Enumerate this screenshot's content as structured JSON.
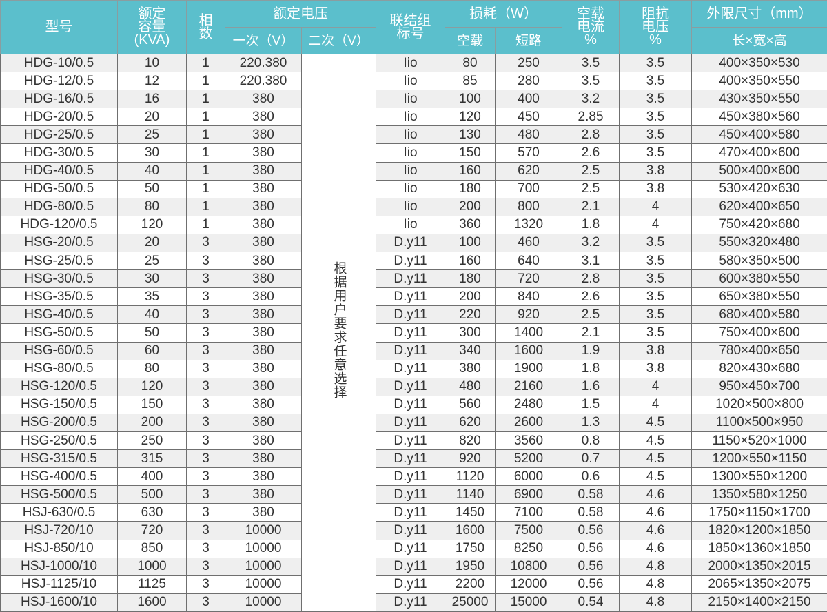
{
  "header": {
    "model": "型号",
    "capacity": [
      "额定",
      "容量",
      "(KVA)"
    ],
    "phases": [
      "相",
      "数"
    ],
    "rated_voltage": "额定电压",
    "primary": "一次（V）",
    "secondary": "二次（V）",
    "connection": [
      "联结组",
      "标号"
    ],
    "loss": "损耗（W）",
    "no_load": "空载",
    "short_circuit": "短路",
    "no_load_current": [
      "空载",
      "电流",
      "%"
    ],
    "impedance_voltage": [
      "阻抗",
      "电压",
      "%"
    ],
    "dimensions": "外限尺寸（mm）",
    "dimensions_sub": "长×宽×高"
  },
  "secondary_note": "根据用户要求任意选择",
  "colors": {
    "header_bg": "#5bbfcc",
    "stripe": "#efefef",
    "text": "#333333"
  },
  "rows": [
    [
      "HDG-10/0.5",
      "10",
      "1",
      "220.380",
      "Iio",
      "80",
      "250",
      "3.5",
      "3.5",
      "400×350×530"
    ],
    [
      "HDG-12/0.5",
      "12",
      "1",
      "220.380",
      "Iio",
      "85",
      "280",
      "3.5",
      "3.5",
      "400×350×550"
    ],
    [
      "HDG-16/0.5",
      "16",
      "1",
      "380",
      "Iio",
      "100",
      "400",
      "3.2",
      "3.5",
      "430×350×550"
    ],
    [
      "HDG-20/0.5",
      "20",
      "1",
      "380",
      "Iio",
      "120",
      "450",
      "2.85",
      "3.5",
      "450×380×560"
    ],
    [
      "HDG-25/0.5",
      "25",
      "1",
      "380",
      "Iio",
      "130",
      "480",
      "2.8",
      "3.5",
      "450×400×580"
    ],
    [
      "HDG-30/0.5",
      "30",
      "1",
      "380",
      "Iio",
      "150",
      "570",
      "2.6",
      "3.5",
      "470×400×600"
    ],
    [
      "HDG-40/0.5",
      "40",
      "1",
      "380",
      "Iio",
      "160",
      "620",
      "2.5",
      "3.8",
      "500×400×600"
    ],
    [
      "HDG-50/0.5",
      "50",
      "1",
      "380",
      "Iio",
      "180",
      "700",
      "2.5",
      "3.8",
      "530×420×630"
    ],
    [
      "HDG-80/0.5",
      "80",
      "1",
      "380",
      "Iio",
      "200",
      "800",
      "2.1",
      "4",
      "620×400×650"
    ],
    [
      "HDG-120/0.5",
      "120",
      "1",
      "380",
      "Iio",
      "360",
      "1320",
      "1.8",
      "4",
      "750×420×680"
    ],
    [
      "HSG-20/0.5",
      "20",
      "3",
      "380",
      "D.y11",
      "100",
      "460",
      "3.2",
      "3.5",
      "550×320×480"
    ],
    [
      "HSG-25/0.5",
      "25",
      "3",
      "380",
      "D.y11",
      "160",
      "640",
      "3.1",
      "3.5",
      "580×350×500"
    ],
    [
      "HSG-30/0.5",
      "30",
      "3",
      "380",
      "D.y11",
      "180",
      "720",
      "2.8",
      "3.5",
      "600×380×550"
    ],
    [
      "HSG-35/0.5",
      "35",
      "3",
      "380",
      "D.y11",
      "200",
      "840",
      "2.6",
      "3.5",
      "650×380×550"
    ],
    [
      "HSG-40/0.5",
      "40",
      "3",
      "380",
      "D.y11",
      "220",
      "920",
      "2.5",
      "3.5",
      "680×400×580"
    ],
    [
      "HSG-50/0.5",
      "50",
      "3",
      "380",
      "D.y11",
      "300",
      "1400",
      "2.1",
      "3.5",
      "750×400×600"
    ],
    [
      "HSG-60/0.5",
      "60",
      "3",
      "380",
      "D.y11",
      "340",
      "1600",
      "1.9",
      "3.8",
      "780×400×650"
    ],
    [
      "HSG-80/0.5",
      "80",
      "3",
      "380",
      "D.y11",
      "380",
      "1900",
      "1.8",
      "3.8",
      "820×430×680"
    ],
    [
      "HSG-120/0.5",
      "120",
      "3",
      "380",
      "D.y11",
      "480",
      "2160",
      "1.6",
      "4",
      "950×450×700"
    ],
    [
      "HSG-150/0.5",
      "150",
      "3",
      "380",
      "D.y11",
      "560",
      "2480",
      "1.5",
      "4",
      "1020×500×800"
    ],
    [
      "HSG-200/0.5",
      "200",
      "3",
      "380",
      "D.y11",
      "620",
      "2600",
      "1.3",
      "4.5",
      "1100×500×950"
    ],
    [
      "HSG-250/0.5",
      "250",
      "3",
      "380",
      "D.y11",
      "820",
      "3560",
      "0.8",
      "4.5",
      "1150×520×1000"
    ],
    [
      "HSG-315/0.5",
      "315",
      "3",
      "380",
      "D.y11",
      "920",
      "5200",
      "0.7",
      "4.5",
      "1200×550×1150"
    ],
    [
      "HSG-400/0.5",
      "400",
      "3",
      "380",
      "D.y11",
      "1120",
      "6000",
      "0.6",
      "4.5",
      "1300×550×1200"
    ],
    [
      "HSG-500/0.5",
      "500",
      "3",
      "380",
      "D.y11",
      "1140",
      "6900",
      "0.58",
      "4.6",
      "1350×580×1250"
    ],
    [
      "HSJ-630/0.5",
      "630",
      "3",
      "380",
      "D.y11",
      "1450",
      "7100",
      "0.58",
      "4.6",
      "1750×1150×1700"
    ],
    [
      "HSJ-720/10",
      "720",
      "3",
      "10000",
      "D.y11",
      "1600",
      "7500",
      "0.56",
      "4.6",
      "1820×1200×1850"
    ],
    [
      "HSJ-850/10",
      "850",
      "3",
      "10000",
      "D.y11",
      "1750",
      "8250",
      "0.56",
      "4.6",
      "1850×1360×1850"
    ],
    [
      "HSJ-1000/10",
      "1000",
      "3",
      "10000",
      "D.y11",
      "1950",
      "10800",
      "0.56",
      "4.8",
      "2000×1350×2015"
    ],
    [
      "HSJ-1125/10",
      "1125",
      "3",
      "10000",
      "D.y11",
      "2200",
      "12000",
      "0.56",
      "4.8",
      "2065×1350×2075"
    ],
    [
      "HSJ-1600/10",
      "1600",
      "3",
      "10000",
      "D.y11",
      "25000",
      "15000",
      "0.54",
      "4.8",
      "2150×1400×2150"
    ]
  ]
}
